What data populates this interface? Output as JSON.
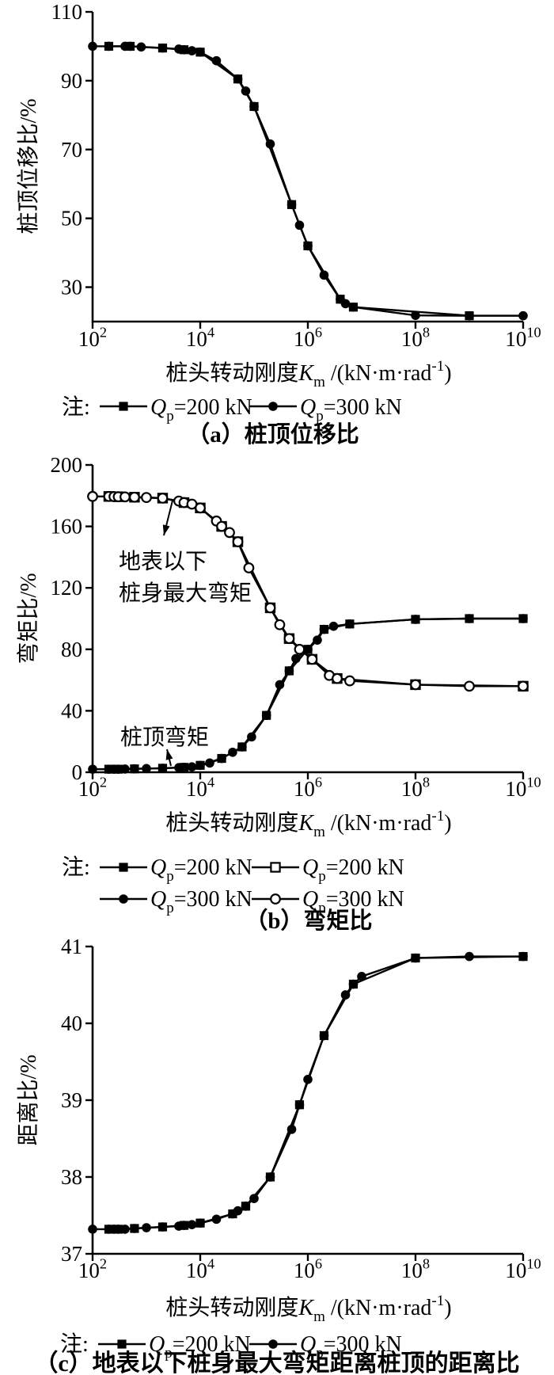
{
  "figure": {
    "background": "#ffffff",
    "ink_color": "#000000",
    "note_label": "注:",
    "x_axis_label": "桩头转动刚度*K*_{m} /(kN·m·rad^{-1})"
  },
  "chart_data": [
    {
      "id": "a",
      "type": "line",
      "x_scale": "log",
      "x_range": [
        100.0,
        10000000000.0
      ],
      "x_ticks": [
        "10^{2}",
        "10^{4}",
        "10^{6}",
        "10^{8}",
        "10^{10}"
      ],
      "x_tick_values": [
        100.0,
        10000.0,
        1000000.0,
        100000000.0,
        10000000000.0
      ],
      "xlabel": "桩头转动刚度*K*_{m} /(kN·m·rad^{-1})",
      "ylabel": "桩顶位移比/%",
      "y_range": [
        20,
        110
      ],
      "y_ticks": [
        110,
        90,
        70,
        50,
        30
      ],
      "grid": false,
      "legend_note": "注:",
      "caption": "（a）桩顶位移比",
      "series": [
        {
          "name": "*Q*_{p}=200 kN",
          "marker": "square-filled",
          "x": [
            200.0,
            500.0,
            2000.0,
            5000.0,
            10000.0,
            50000.0,
            100000.0,
            500000.0,
            1000000.0,
            4000000.0,
            7000000.0,
            1000000000.0
          ],
          "y": [
            100,
            100,
            99.5,
            99,
            98.3,
            90.5,
            82.5,
            54,
            42,
            26.5,
            24.2,
            21.7
          ]
        },
        {
          "name": "*Q*_{p}=300 kN",
          "marker": "circle-filled",
          "x": [
            100.0,
            200.0,
            400.0,
            500.0,
            800.0,
            2000.0,
            4000.0,
            5000.0,
            7000.0,
            10000.0,
            20000.0,
            50000.0,
            70000.0,
            100000.0,
            200000.0,
            500000.0,
            700000.0,
            1000000.0,
            2000000.0,
            4000000.0,
            5000000.0,
            7000000.0,
            100000000.0,
            1000000000.0,
            10000000000.0
          ],
          "y": [
            100,
            100,
            100,
            100,
            99.8,
            99.5,
            99.2,
            99,
            98.7,
            98.3,
            95.8,
            90.5,
            87,
            82.5,
            71.6,
            54,
            48,
            42,
            33.5,
            26.5,
            25.2,
            24.2,
            21.8,
            21.7,
            21.7
          ]
        }
      ]
    },
    {
      "id": "b",
      "type": "line",
      "x_scale": "log",
      "x_range": [
        100.0,
        10000000000.0
      ],
      "x_ticks": [
        "10^{2}",
        "10^{4}",
        "10^{6}",
        "10^{8}",
        "10^{10}"
      ],
      "x_tick_values": [
        100.0,
        10000.0,
        1000000.0,
        100000000.0,
        10000000000.0
      ],
      "xlabel": "桩头转动刚度*K*_{m} /(kN·m·rad^{-1})",
      "ylabel": "弯矩比/%",
      "y_range": [
        0,
        200
      ],
      "y_ticks": [
        200,
        160,
        120,
        80,
        40,
        0
      ],
      "grid": false,
      "legend_note": "注:",
      "caption": "（b）弯矩比",
      "annotations": [
        {
          "lines": [
            "地表以下",
            "桩身最大弯矩"
          ],
          "target": "地表以下桩身最大弯矩曲线"
        },
        {
          "lines": [
            "桩顶弯矩"
          ],
          "target": "桩顶弯矩曲线"
        }
      ],
      "series": [
        {
          "name": "*Q*_{p}=200 kN",
          "curve": "桩顶弯矩",
          "marker": "square-filled",
          "x": [
            200.0,
            300.0,
            600.0,
            2000.0,
            5000.0,
            10000.0,
            25000.0,
            60000.0,
            170000.0,
            450000.0,
            1000000.0,
            2000000.0,
            6000000.0,
            100000000.0,
            1000000000.0,
            10000000000.0
          ],
          "y": [
            2,
            2,
            2.2,
            2.6,
            3.2,
            4.5,
            9,
            16.5,
            37,
            66,
            80,
            93,
            96.5,
            99.5,
            100,
            100
          ]
        },
        {
          "name": "*Q*_{p}=200 kN",
          "curve": "地表以下桩身最大弯矩",
          "marker": "square-open",
          "x": [
            200.0,
            300.0,
            600.0,
            2000.0,
            5000.0,
            10000.0,
            25000.0,
            50000.0,
            200000.0,
            450000.0,
            1200000.0,
            3500000.0,
            100000000.0,
            10000000000.0
          ],
          "y": [
            179.5,
            179.3,
            179,
            178.4,
            175.5,
            172,
            160,
            150,
            107,
            87,
            73.5,
            61,
            57,
            56
          ]
        },
        {
          "name": "*Q*_{p}=300 kN",
          "curve": "桩顶弯矩",
          "marker": "circle-filled",
          "x": [
            100.0,
            200.0,
            250.0,
            300.0,
            400.0,
            600.0,
            1000.0,
            2000.0,
            4000.0,
            5000.0,
            7000.0,
            10000.0,
            15000.0,
            25000.0,
            40000.0,
            60000.0,
            90000.0,
            170000.0,
            300000.0,
            450000.0,
            600000.0,
            1000000.0,
            1500000.0,
            2000000.0,
            3000000.0,
            6000000.0,
            100000000.0,
            1000000000.0,
            10000000000.0
          ],
          "y": [
            2,
            2,
            2,
            2,
            2.1,
            2.2,
            2.4,
            2.6,
            3,
            3.2,
            3.5,
            4.5,
            6,
            9,
            13,
            16.5,
            23,
            37,
            57,
            66,
            74,
            80,
            86,
            93,
            95,
            96.5,
            99.5,
            100,
            100
          ]
        },
        {
          "name": "*Q*_{p}=300 kN",
          "curve": "地表以下桩身最大弯矩",
          "marker": "circle-open",
          "x": [
            100.0,
            200.0,
            250.0,
            300.0,
            400.0,
            600.0,
            1000.0,
            2000.0,
            4000.0,
            5000.0,
            7000.0,
            10000.0,
            20000.0,
            25000.0,
            35000.0,
            50000.0,
            80000.0,
            200000.0,
            300000.0,
            450000.0,
            700000.0,
            1200000.0,
            2500000.0,
            3500000.0,
            6000000.0,
            100000000.0,
            1000000000.0,
            10000000000.0
          ],
          "y": [
            179.5,
            179.5,
            179.4,
            179.3,
            179.2,
            179,
            178.8,
            178.4,
            176.5,
            175.5,
            174.5,
            172,
            163.5,
            160,
            156,
            150,
            133,
            107,
            96,
            87,
            80,
            73.5,
            63,
            61,
            59.5,
            57,
            56,
            56
          ]
        }
      ]
    },
    {
      "id": "c",
      "type": "line",
      "x_scale": "log",
      "x_range": [
        100.0,
        10000000000.0
      ],
      "x_ticks": [
        "10^{2}",
        "10^{4}",
        "10^{6}",
        "10^{8}",
        "10^{10}"
      ],
      "x_tick_values": [
        100.0,
        10000.0,
        1000000.0,
        100000000.0,
        10000000000.0
      ],
      "xlabel": "桩头转动刚度*K*_{m} /(kN·m·rad^{-1})",
      "ylabel": "距离比/%",
      "y_range": [
        37,
        41
      ],
      "y_ticks": [
        41,
        40,
        39,
        38,
        37
      ],
      "grid": false,
      "legend_note": "注:",
      "caption": "（c）地表以下桩身最大弯矩距离桩顶的距离比",
      "series": [
        {
          "name": "*Q*_{p}=200 kN",
          "marker": "square-filled",
          "x": [
            200.0,
            300.0,
            600.0,
            2000.0,
            5000.0,
            10000.0,
            40000.0,
            70000.0,
            200000.0,
            700000.0,
            2000000.0,
            7000000.0,
            100000000.0,
            10000000000.0
          ],
          "y": [
            37.32,
            37.32,
            37.33,
            37.35,
            37.37,
            37.4,
            37.52,
            37.62,
            38.0,
            38.94,
            39.84,
            40.51,
            40.85,
            40.87
          ]
        },
        {
          "name": "*Q*_{p}=300 kN",
          "marker": "circle-filled",
          "x": [
            100.0,
            200.0,
            250.0,
            300.0,
            400.0,
            600.0,
            1000.0,
            2000.0,
            4000.0,
            5000.0,
            7000.0,
            10000.0,
            20000.0,
            40000.0,
            50000.0,
            70000.0,
            100000.0,
            200000.0,
            500000.0,
            700000.0,
            1000000.0,
            2000000.0,
            5000000.0,
            7000000.0,
            10000000.0,
            100000000.0,
            1000000000.0,
            10000000000.0
          ],
          "y": [
            37.32,
            37.32,
            37.32,
            37.32,
            37.32,
            37.33,
            37.34,
            37.35,
            37.36,
            37.37,
            37.38,
            37.4,
            37.45,
            37.52,
            37.56,
            37.62,
            37.72,
            38.0,
            38.62,
            38.94,
            39.27,
            39.84,
            40.37,
            40.51,
            40.61,
            40.85,
            40.87,
            40.87
          ]
        }
      ]
    }
  ]
}
